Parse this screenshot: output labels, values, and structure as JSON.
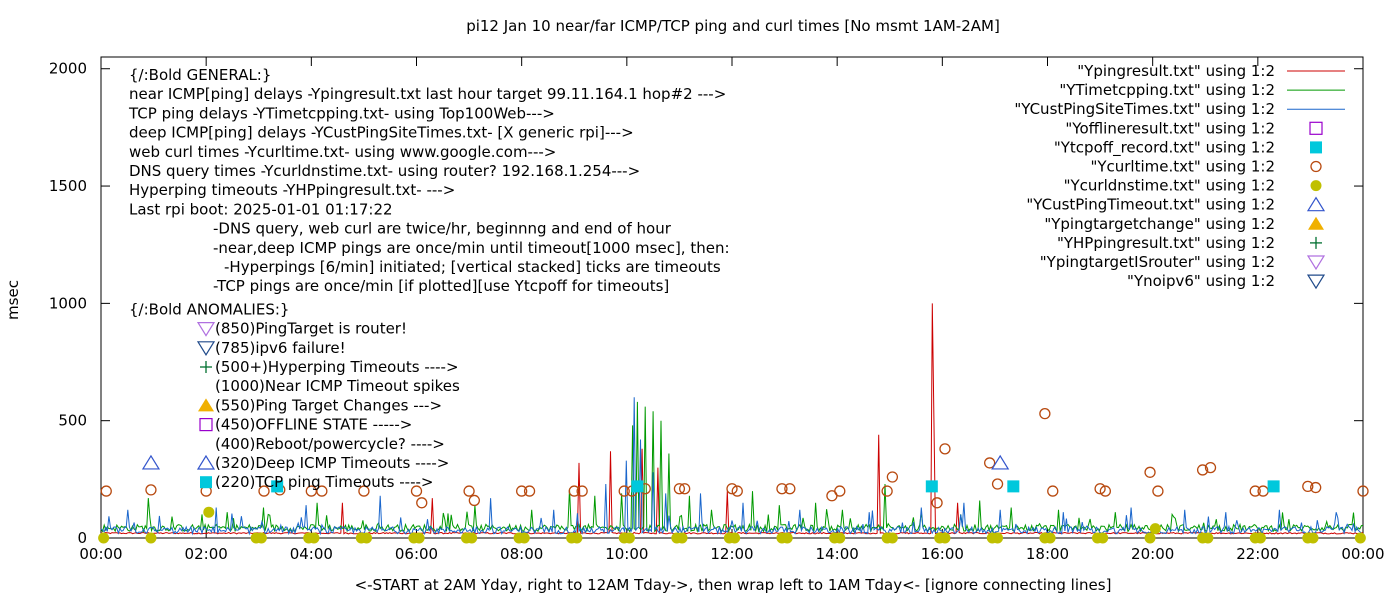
{
  "chart_data": {
    "type": "line",
    "title": "pi12  Jan 10  near/far ICMP/TCP ping and curl times [No msmt 1AM-2AM]",
    "xlabel": "<-START at 2AM Yday, right to 12AM Tday->, then wrap left to 1AM Tday<- [ignore connecting lines]",
    "ylabel": "msec",
    "xlim_hours": [
      0,
      24
    ],
    "ylim": [
      0,
      2050
    ],
    "x_ticks": [
      "00:00",
      "02:00",
      "04:00",
      "06:00",
      "08:00",
      "10:00",
      "12:00",
      "14:00",
      "16:00",
      "18:00",
      "20:00",
      "22:00",
      "00:00"
    ],
    "y_ticks": [
      {
        "value": 0,
        "label": "0"
      },
      {
        "value": 500,
        "label": "500"
      },
      {
        "value": 1000,
        "label": "1000"
      },
      {
        "value": 1500,
        "label": "1500"
      },
      {
        "value": 2000,
        "label": "2000"
      }
    ],
    "annotations": [
      {
        "text": "{/:Bold GENERAL:}",
        "indent": 0
      },
      {
        "text": "near ICMP[ping] delays -Ypingresult.txt last hour target 99.11.164.1 hop#2 --->",
        "indent": 0
      },
      {
        "text": "TCP ping delays -YTimetcpping.txt- using Top100Web--->",
        "indent": 0
      },
      {
        "text": "deep ICMP[ping] delays -YCustPingSiteTimes.txt- [X generic rpi]--->",
        "indent": 0
      },
      {
        "text": "web curl times -Ycurltime.txt- using www.google.com--->",
        "indent": 0
      },
      {
        "text": "DNS query times -Ycurldnstime.txt- using router? 192.168.1.254--->",
        "indent": 0
      },
      {
        "text": "Hyperping timeouts -YHPpingresult.txt- --->",
        "indent": 0
      },
      {
        "text": "Last rpi boot: 2025-01-01 01:17:22",
        "indent": 0
      },
      {
        "text": "-DNS query, web curl are twice/hr, beginnng and end of hour",
        "indent": 1
      },
      {
        "text": "-near,deep ICMP pings are once/min until timeout[1000 msec], then:",
        "indent": 1
      },
      {
        "text": "-Hyperpings [6/min] initiated; [vertical stacked] ticks are timeouts",
        "indent": 2
      },
      {
        "text": "-TCP pings are once/min [if plotted][use Ytcpoff for timeouts]",
        "indent": 1
      },
      {
        "text": "{/:Bold ANOMALIES:}",
        "indent": 0
      },
      {
        "text": "(850)PingTarget is router!",
        "indent": 3,
        "marker": "tri-down-violet"
      },
      {
        "text": "(785)ipv6 failure!",
        "indent": 3,
        "marker": "tri-down-navy"
      },
      {
        "text": "(500+)Hyperping Timeouts ---->",
        "indent": 3,
        "marker": "plus-green"
      },
      {
        "text": "(1000)Near ICMP Timeout spikes",
        "indent": 3
      },
      {
        "text": "(550)Ping Target Changes --->",
        "indent": 3,
        "marker": "tri-up-orange"
      },
      {
        "text": "(450)OFFLINE STATE ----->",
        "indent": 3,
        "marker": "square-purple"
      },
      {
        "text": "(400)Reboot/powercycle? ---->",
        "indent": 3
      },
      {
        "text": "(320)Deep ICMP Timeouts ---->",
        "indent": 3,
        "marker": "tri-up-blue"
      },
      {
        "text": "(220)TCP ping Timeouts ---->",
        "indent": 3,
        "marker": "square-cyan"
      }
    ],
    "legend_position": "top-right",
    "legend": [
      {
        "name": "\"Ypingresult.txt\" using 1:2",
        "style": "line",
        "color": "#cc0000"
      },
      {
        "name": "\"YTimetcpping.txt\" using 1:2",
        "style": "line",
        "color": "#009900"
      },
      {
        "name": "\"YCustPingSiteTimes.txt\" using 1:2",
        "style": "line",
        "color": "#1a66cc"
      },
      {
        "name": "\"Yofflineresult.txt\" using 1:2",
        "style": "square-open",
        "color": "#9900cc"
      },
      {
        "name": "\"Ytcpoff_record.txt\" using 1:2",
        "style": "square-filled",
        "color": "#00c8dc"
      },
      {
        "name": "\"Ycurltime.txt\" using 1:2",
        "style": "circle-open",
        "color": "#b84a10"
      },
      {
        "name": "\"Ycurldnstime.txt\" using 1:2",
        "style": "circle-filled",
        "color": "#c0c000"
      },
      {
        "name": "\"YCustPingTimeout.txt\" using 1:2",
        "style": "tri-up-open",
        "color": "#3355cc"
      },
      {
        "name": "\"Ypingtargetchange\" using 1:2",
        "style": "tri-up-filled",
        "color": "#f0b000"
      },
      {
        "name": "\"YHPpingresult.txt\" using 1:2",
        "style": "plus",
        "color": "#007030"
      },
      {
        "name": "\"YpingtargetISrouter\" using 1:2",
        "style": "tri-down-open",
        "color": "#b070e0"
      },
      {
        "name": "\"Ynoipv6\" using 1:2",
        "style": "tri-down-open",
        "color": "#204a8a"
      }
    ],
    "series": [
      {
        "name": "\"Ypingresult.txt\" using 1:2",
        "baseline": 20,
        "spikes": [
          [
            4.6,
            150
          ],
          [
            6.3,
            170
          ],
          [
            9.1,
            320
          ],
          [
            9.7,
            370
          ],
          [
            10.3,
            380
          ],
          [
            10.6,
            300
          ],
          [
            11.9,
            200
          ],
          [
            14.8,
            440
          ],
          [
            15.8,
            1000
          ],
          [
            15.85,
            510
          ],
          [
            16.3,
            150
          ]
        ]
      },
      {
        "name": "\"YTimetcpping.txt\" using 1:2",
        "baseline": 40,
        "spikes": [
          [
            0.9,
            170
          ],
          [
            2.4,
            110
          ],
          [
            3.1,
            130
          ],
          [
            4.1,
            150
          ],
          [
            7.1,
            140
          ],
          [
            8.2,
            120
          ],
          [
            8.9,
            210
          ],
          [
            9.4,
            180
          ],
          [
            9.9,
            190
          ],
          [
            10.1,
            480
          ],
          [
            10.2,
            580
          ],
          [
            10.35,
            560
          ],
          [
            10.5,
            540
          ],
          [
            10.65,
            500
          ],
          [
            10.8,
            360
          ],
          [
            11.2,
            180
          ],
          [
            11.6,
            120
          ],
          [
            12.4,
            200
          ],
          [
            12.9,
            140
          ],
          [
            13.6,
            150
          ],
          [
            14.1,
            120
          ],
          [
            14.9,
            230
          ],
          [
            15.6,
            110
          ],
          [
            16.7,
            160
          ],
          [
            17.3,
            130
          ],
          [
            18.2,
            120
          ],
          [
            19.3,
            110
          ],
          [
            20.4,
            90
          ],
          [
            21.2,
            80
          ],
          [
            22.6,
            80
          ],
          [
            23.3,
            70
          ]
        ]
      },
      {
        "name": "\"YCustPingSiteTimes.txt\" using 1:2",
        "baseline": 30,
        "spikes": [
          [
            0.5,
            120
          ],
          [
            2.2,
            130
          ],
          [
            3.9,
            140
          ],
          [
            5.3,
            180
          ],
          [
            7.4,
            170
          ],
          [
            8.6,
            120
          ],
          [
            9.6,
            230
          ],
          [
            10.0,
            330
          ],
          [
            10.15,
            600
          ],
          [
            10.25,
            420
          ],
          [
            10.5,
            280
          ],
          [
            10.75,
            190
          ],
          [
            11.4,
            190
          ],
          [
            12.2,
            150
          ],
          [
            13.3,
            120
          ],
          [
            14.6,
            110
          ],
          [
            15.6,
            130
          ],
          [
            16.4,
            150
          ],
          [
            17.1,
            120
          ],
          [
            18.3,
            110
          ],
          [
            19.6,
            130
          ],
          [
            20.6,
            120
          ],
          [
            21.4,
            110
          ],
          [
            22.4,
            120
          ],
          [
            23.5,
            110
          ]
        ]
      }
    ],
    "markers": {
      "curl": [
        [
          0.1,
          200
        ],
        [
          0.95,
          205
        ],
        [
          2.0,
          200
        ],
        [
          3.1,
          200
        ],
        [
          3.4,
          205
        ],
        [
          4.0,
          200
        ],
        [
          4.2,
          200
        ],
        [
          5.0,
          200
        ],
        [
          6.0,
          200
        ],
        [
          6.1,
          150
        ],
        [
          7.0,
          200
        ],
        [
          7.1,
          160
        ],
        [
          8.0,
          200
        ],
        [
          8.15,
          200
        ],
        [
          9.0,
          200
        ],
        [
          9.15,
          200
        ],
        [
          9.95,
          200
        ],
        [
          10.1,
          200
        ],
        [
          10.35,
          210
        ],
        [
          11.0,
          210
        ],
        [
          11.1,
          210
        ],
        [
          12.0,
          210
        ],
        [
          12.1,
          200
        ],
        [
          12.95,
          210
        ],
        [
          13.1,
          210
        ],
        [
          13.9,
          180
        ],
        [
          14.05,
          200
        ],
        [
          14.95,
          200
        ],
        [
          15.05,
          260
        ],
        [
          15.9,
          150
        ],
        [
          16.05,
          380
        ],
        [
          16.9,
          320
        ],
        [
          17.05,
          230
        ],
        [
          17.95,
          530
        ],
        [
          18.1,
          200
        ],
        [
          19.0,
          210
        ],
        [
          19.1,
          200
        ],
        [
          19.95,
          280
        ],
        [
          20.1,
          200
        ],
        [
          20.95,
          290
        ],
        [
          21.1,
          300
        ],
        [
          21.95,
          200
        ],
        [
          22.1,
          200
        ],
        [
          22.95,
          220
        ],
        [
          23.1,
          215
        ],
        [
          24.0,
          200
        ]
      ],
      "dns": [
        [
          0.05,
          0
        ],
        [
          0.95,
          0
        ],
        [
          2.05,
          110
        ],
        [
          2.95,
          0
        ],
        [
          3.05,
          0
        ],
        [
          3.95,
          0
        ],
        [
          4.05,
          0
        ],
        [
          4.95,
          0
        ],
        [
          5.05,
          0
        ],
        [
          5.95,
          0
        ],
        [
          6.05,
          0
        ],
        [
          6.95,
          0
        ],
        [
          7.05,
          0
        ],
        [
          7.95,
          0
        ],
        [
          8.05,
          0
        ],
        [
          8.95,
          0
        ],
        [
          9.05,
          0
        ],
        [
          9.95,
          0
        ],
        [
          10.05,
          0
        ],
        [
          10.95,
          0
        ],
        [
          11.05,
          0
        ],
        [
          11.95,
          0
        ],
        [
          12.05,
          0
        ],
        [
          12.95,
          0
        ],
        [
          13.05,
          0
        ],
        [
          13.95,
          0
        ],
        [
          14.05,
          0
        ],
        [
          14.95,
          0
        ],
        [
          15.05,
          0
        ],
        [
          15.95,
          0
        ],
        [
          16.05,
          0
        ],
        [
          16.95,
          0
        ],
        [
          17.05,
          0
        ],
        [
          17.95,
          0
        ],
        [
          18.05,
          0
        ],
        [
          18.95,
          0
        ],
        [
          19.05,
          0
        ],
        [
          19.95,
          0
        ],
        [
          20.05,
          40
        ],
        [
          20.95,
          0
        ],
        [
          21.05,
          0
        ],
        [
          21.95,
          0
        ],
        [
          22.05,
          0
        ],
        [
          22.95,
          0
        ],
        [
          23.05,
          0
        ],
        [
          23.95,
          0
        ]
      ],
      "tcp_timeouts": [
        [
          3.35,
          220
        ],
        [
          10.2,
          220
        ],
        [
          15.8,
          220
        ],
        [
          17.35,
          220
        ],
        [
          22.3,
          220
        ]
      ],
      "deep_timeouts": [
        [
          0.95,
          320
        ],
        [
          17.1,
          320
        ]
      ]
    }
  }
}
